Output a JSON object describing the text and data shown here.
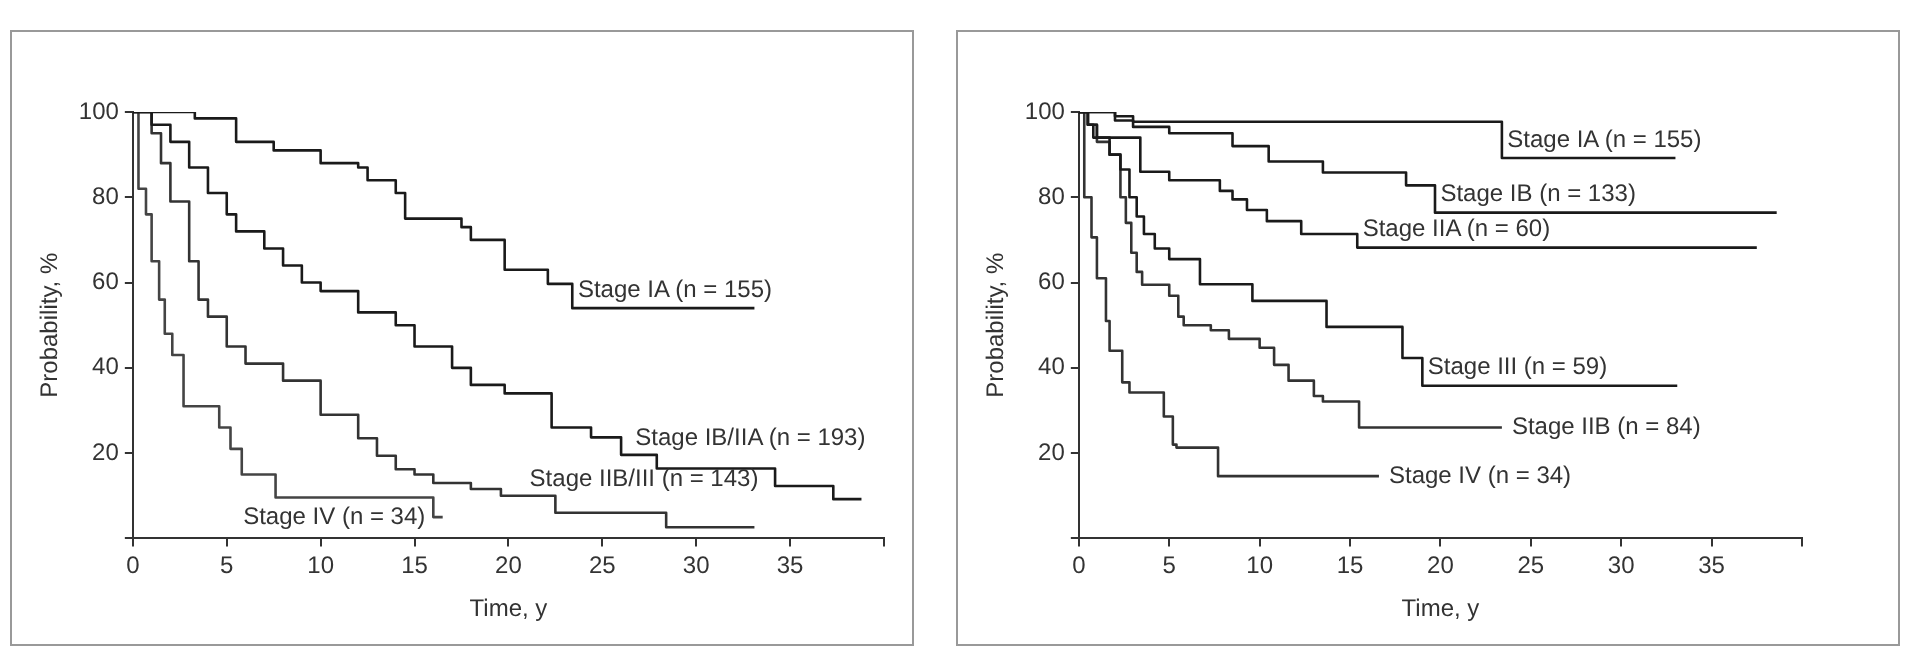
{
  "chart_data": [
    {
      "type": "step",
      "xlabel": "Time, y",
      "ylabel": "Probability, %",
      "xlim": [
        0,
        40
      ],
      "xticks": [
        0,
        5,
        10,
        15,
        20,
        25,
        30,
        35,
        {
          "value": 40,
          "label": null
        }
      ],
      "ylim": [
        0,
        100
      ],
      "yticks": [
        {
          "value": 0,
          "label": null
        },
        20,
        40,
        60,
        80,
        100
      ],
      "grid": false,
      "legend": false,
      "marker": "none",
      "line_style": "solid",
      "series": [
        {
          "name": "Stage IA (n = 155)",
          "color": "#1a1a1a",
          "x": [
            0,
            3.3,
            5.5,
            7.5,
            10,
            12,
            12.5,
            14,
            14.5,
            17.5,
            18,
            19.8,
            22.1,
            23.4,
            33.1
          ],
          "values": [
            100,
            98.5,
            93,
            91,
            88,
            87,
            84,
            81,
            75,
            73,
            70,
            63,
            59.7,
            54,
            54
          ]
        },
        {
          "name": "Stage IB/IIA (n = 193)",
          "color": "#1a1a1a",
          "x": [
            0,
            1,
            2,
            3,
            4,
            5,
            5.5,
            7,
            8,
            9,
            10,
            12,
            14,
            15,
            17,
            18,
            19.8,
            22.3,
            24.4,
            26,
            27.9,
            34.2,
            37.3,
            38.8
          ],
          "values": [
            100,
            97,
            93,
            87,
            81,
            76,
            72,
            68,
            64,
            60,
            58,
            53,
            50,
            45,
            40,
            36,
            34,
            26,
            23.7,
            19.6,
            16.4,
            12.3,
            9.2,
            9.2
          ]
        },
        {
          "name": "Stage IIB/III (n = 143)",
          "color": "#333333",
          "x": [
            0,
            1,
            1.5,
            2,
            3,
            3.5,
            4,
            5,
            6,
            8,
            10,
            12,
            13,
            14,
            15,
            16,
            18,
            19.6,
            22.5,
            28.4,
            33.1
          ],
          "values": [
            100,
            95,
            88,
            79,
            65,
            56,
            52,
            45,
            41,
            37,
            29,
            23.5,
            19.4,
            16.2,
            15,
            13,
            11.6,
            10,
            6,
            2.6,
            2.6
          ]
        },
        {
          "name": "Stage IV (n = 34)",
          "color": "#444444",
          "x": [
            0,
            0.3,
            0.7,
            1,
            1.4,
            1.7,
            2.1,
            2.7,
            4.6,
            5.2,
            5.8,
            7.6,
            16,
            16.5
          ],
          "values": [
            100,
            82,
            76,
            65,
            56,
            48,
            43,
            31,
            26,
            21,
            15,
            9.6,
            5,
            5
          ]
        }
      ]
    },
    {
      "type": "step",
      "xlabel": "Time, y",
      "ylabel": "Probability, %",
      "xlim": [
        0,
        40
      ],
      "xticks": [
        0,
        5,
        10,
        15,
        20,
        25,
        30,
        35,
        {
          "value": 40,
          "label": null
        }
      ],
      "ylim": [
        0,
        100
      ],
      "yticks": [
        {
          "value": 0,
          "label": null
        },
        20,
        40,
        60,
        80,
        100
      ],
      "grid": false,
      "legend": false,
      "marker": "none",
      "line_style": "solid",
      "series": [
        {
          "name": "Stage IA (n = 155)",
          "color": "#1a1a1a",
          "x": [
            0,
            2,
            3,
            23.4,
            33
          ],
          "values": [
            100,
            99,
            97.7,
            89.2,
            89.2
          ]
        },
        {
          "name": "Stage IB (n = 133)",
          "color": "#1a1a1a",
          "x": [
            0,
            2,
            3,
            5,
            8.5,
            10.5,
            13.5,
            18.1,
            19.7,
            38.6
          ],
          "values": [
            100,
            98,
            96.5,
            95,
            92,
            88.4,
            85.8,
            82.8,
            76.4,
            76.4
          ]
        },
        {
          "name": "Stage IIA (n = 60)",
          "color": "#1a1a1a",
          "x": [
            0,
            0.5,
            0.8,
            3.4,
            5,
            7.8,
            8.5,
            9.3,
            10.4,
            12.3,
            15.4,
            37.5
          ],
          "values": [
            100,
            97,
            94,
            86,
            84,
            81.5,
            79.5,
            77,
            74.4,
            71.4,
            68.2,
            68.2
          ]
        },
        {
          "name": "Stage III (n = 59)",
          "color": "#1a1a1a",
          "x": [
            0,
            0.5,
            1,
            1.7,
            2.3,
            2.8,
            3.2,
            3.6,
            4.2,
            5,
            6.7,
            9.6,
            13.7,
            17.9,
            19,
            33.1
          ],
          "values": [
            100,
            97,
            94,
            90,
            86.5,
            80,
            75.5,
            71.4,
            68,
            65.5,
            59.6,
            55.7,
            49.6,
            42.3,
            35.8,
            35.8
          ]
        },
        {
          "name": "Stage IIB (n = 84)",
          "color": "#333333",
          "x": [
            0,
            0.5,
            1,
            1.7,
            2.3,
            2.6,
            2.9,
            3.2,
            3.5,
            5,
            5.5,
            5.8,
            7.3,
            8.3,
            10,
            10.8,
            11.6,
            13,
            13.5,
            15.5,
            23.4
          ],
          "values": [
            100,
            97,
            93,
            90,
            80,
            74,
            67,
            62.5,
            59.5,
            56.9,
            52,
            50,
            48.8,
            46.8,
            44.7,
            40.7,
            37,
            33.4,
            32.1,
            26,
            26
          ]
        },
        {
          "name": "Stage IV (n = 34)",
          "color": "#333333",
          "x": [
            0,
            0.3,
            0.7,
            1,
            1.5,
            1.7,
            2.4,
            2.8,
            4.7,
            5.2,
            5.4,
            7.7,
            16.6
          ],
          "values": [
            100,
            80,
            70.6,
            61,
            51,
            44,
            36.6,
            34.2,
            28.6,
            22,
            21.3,
            14.6,
            14.6
          ]
        }
      ]
    }
  ]
}
